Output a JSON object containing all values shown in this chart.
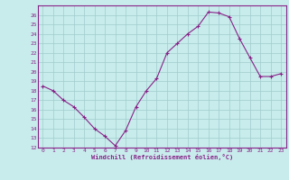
{
  "x": [
    0,
    1,
    2,
    3,
    4,
    5,
    6,
    7,
    8,
    9,
    10,
    11,
    12,
    13,
    14,
    15,
    16,
    17,
    18,
    19,
    20,
    21,
    22,
    23
  ],
  "y": [
    18.5,
    18.0,
    17.0,
    16.3,
    15.2,
    14.0,
    13.2,
    12.2,
    13.8,
    16.3,
    18.0,
    19.3,
    22.0,
    23.0,
    24.0,
    24.8,
    26.3,
    26.2,
    25.8,
    23.5,
    21.5,
    19.5,
    19.5,
    19.8
  ],
  "line_color": "#882288",
  "marker": "+",
  "marker_size": 3,
  "bg_color": "#c8ecec",
  "grid_color": "#a0cccc",
  "xlabel": "Windchill (Refroidissement éolien,°C)",
  "xlabel_color": "#882288",
  "tick_color": "#882288",
  "ylim": [
    12,
    27
  ],
  "xlim": [
    -0.5,
    23.5
  ],
  "yticks": [
    12,
    13,
    14,
    15,
    16,
    17,
    18,
    19,
    20,
    21,
    22,
    23,
    24,
    25,
    26
  ],
  "xticks": [
    0,
    1,
    2,
    3,
    4,
    5,
    6,
    7,
    8,
    9,
    10,
    11,
    12,
    13,
    14,
    15,
    16,
    17,
    18,
    19,
    20,
    21,
    22,
    23
  ],
  "spine_color": "#882288",
  "axis_bg_color": "#c8ecec"
}
